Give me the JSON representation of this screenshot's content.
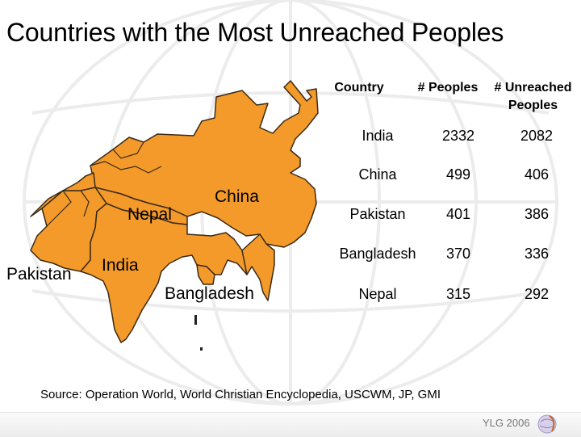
{
  "title": "Countries with the Most Unreached Peoples",
  "map_labels": {
    "nepal": "Nepal",
    "china": "China",
    "pakistan": "Pakistan",
    "india": "India",
    "bangladesh": "Bangladesh"
  },
  "table": {
    "headers": [
      "Country",
      "# Peoples",
      "# Unreached Peoples"
    ],
    "rows": [
      {
        "country": "India",
        "peoples": "2332",
        "unreached": "2082"
      },
      {
        "country": "China",
        "peoples": "499",
        "unreached": "406"
      },
      {
        "country": "Pakistan",
        "peoples": "401",
        "unreached": "386"
      },
      {
        "country": "Bangladesh",
        "peoples": "370",
        "unreached": "336"
      },
      {
        "country": "Nepal",
        "peoples": "315",
        "unreached": "292"
      }
    ]
  },
  "source": "Source:  Operation World, World Christian Encyclopedia, USCWM, JP, GMI",
  "footer": {
    "brand": "YLG 2006",
    "logo_icon": "globe-logo-icon"
  },
  "colors": {
    "map_fill": "#F39A2B",
    "map_stroke": "#3a2a15"
  }
}
